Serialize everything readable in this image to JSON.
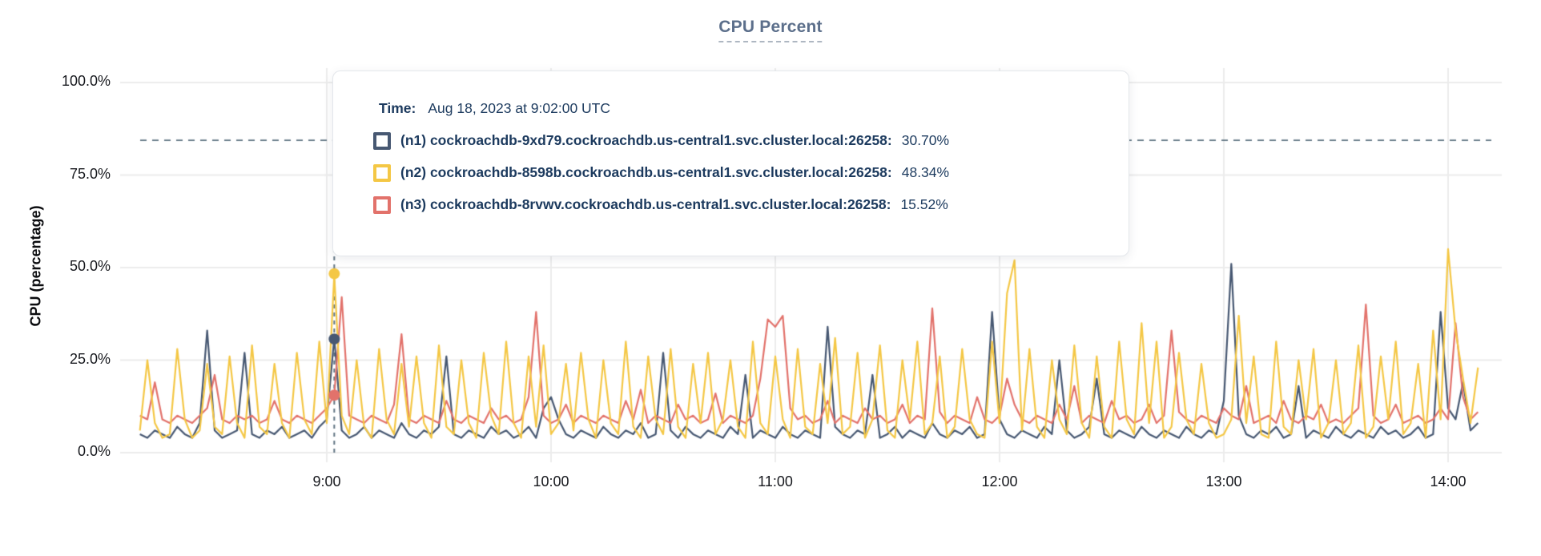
{
  "title": "CPU Percent",
  "y_axis_label": "CPU (percentage)",
  "tooltip": {
    "time_label": "Time:",
    "time_value": "Aug 18, 2023 at 9:02:00 UTC",
    "rows": [
      {
        "label": "(n1) cockroachdb-9xd79.cockroachdb.us-central1.svc.cluster.local:26258:",
        "value": "30.70%"
      },
      {
        "label": "(n2) cockroachdb-8598b.cockroachdb.us-central1.svc.cluster.local:26258:",
        "value": "48.34%"
      },
      {
        "label": "(n3) cockroachdb-8rvwv.cockroachdb.us-central1.svc.cluster.local:26258:",
        "value": "15.52%"
      }
    ]
  },
  "colors": {
    "title": "#5C6F8B",
    "tooltip_text": "#1C3A5E",
    "gridline": "#ECECEC",
    "dashed_guides": "#5F7482",
    "series_n1": "#475872",
    "series_n2": "#F4C745",
    "series_n3": "#E2726B"
  },
  "chart_data": {
    "type": "line",
    "title": "CPU Percent",
    "ylabel": "CPU (percentage)",
    "xlabel": "",
    "ylim": [
      0,
      100
    ],
    "grid": true,
    "y_tick_labels": [
      "0.0%",
      "25.0%",
      "50.0%",
      "75.0%",
      "100.0%"
    ],
    "x_tick_labels": [
      "9:00",
      "10:00",
      "11:00",
      "12:00",
      "13:00",
      "14:00"
    ],
    "x_ticks_minutes": [
      540,
      600,
      660,
      720,
      780,
      840
    ],
    "x_start": "8:10",
    "x_start_minute": 490,
    "x_step_minutes": 2,
    "threshold_percent": 84.4,
    "hover": {
      "time": "9:02",
      "date": "Aug 18, 2023",
      "values": [
        30.7,
        48.34,
        15.52
      ]
    },
    "series": [
      {
        "name": "(n1) cockroachdb-9xd79.cockroachdb.us-central1.svc.cluster.local:26258",
        "color": "#475872",
        "values": [
          5,
          4,
          6,
          5,
          4,
          7,
          5,
          4,
          8,
          33,
          6,
          4,
          5,
          6,
          27,
          5,
          4,
          6,
          5,
          7,
          4,
          5,
          6,
          4,
          7,
          9,
          31,
          6,
          4,
          5,
          7,
          4,
          6,
          5,
          4,
          8,
          5,
          4,
          6,
          5,
          7,
          26,
          5,
          4,
          6,
          5,
          4,
          7,
          5,
          6,
          4,
          5,
          7,
          4,
          12,
          15,
          9,
          5,
          4,
          6,
          5,
          4,
          7,
          5,
          4,
          6,
          5,
          8,
          4,
          5,
          27,
          6,
          4,
          7,
          5,
          4,
          6,
          5,
          4,
          7,
          5,
          21,
          4,
          6,
          5,
          4,
          7,
          5,
          4,
          6,
          5,
          4,
          34,
          7,
          5,
          4,
          6,
          5,
          21,
          4,
          5,
          7,
          4,
          6,
          5,
          4,
          8,
          5,
          4,
          6,
          5,
          7,
          4,
          5,
          38,
          9,
          5,
          4,
          6,
          5,
          4,
          7,
          5,
          25,
          6,
          4,
          5,
          7,
          20,
          5,
          4,
          6,
          5,
          4,
          7,
          5,
          4,
          6,
          5,
          4,
          7,
          5,
          4,
          6,
          5,
          14,
          51,
          10,
          5,
          4,
          6,
          5,
          7,
          4,
          5,
          18,
          4,
          6,
          5,
          4,
          7,
          5,
          4,
          6,
          5,
          4,
          7,
          5,
          6,
          4,
          5,
          7,
          4,
          5,
          38,
          12,
          9,
          19,
          6,
          8
        ]
      },
      {
        "name": "(n2) cockroachdb-8598b.cockroachdb.us-central1.svc.cluster.local:26258",
        "color": "#F4C745",
        "values": [
          6,
          25,
          8,
          4,
          5,
          28,
          9,
          4,
          6,
          24,
          7,
          5,
          26,
          8,
          4,
          29,
          7,
          5,
          24,
          8,
          4,
          27,
          9,
          5,
          30,
          8,
          48,
          10,
          5,
          25,
          7,
          4,
          28,
          9,
          5,
          24,
          7,
          26,
          8,
          4,
          29,
          7,
          5,
          25,
          8,
          4,
          27,
          10,
          5,
          30,
          8,
          4,
          26,
          7,
          29,
          5,
          8,
          24,
          6,
          27,
          9,
          4,
          25,
          8,
          5,
          30,
          7,
          4,
          26,
          9,
          5,
          28,
          7,
          4,
          24,
          8,
          27,
          5,
          9,
          25,
          7,
          4,
          30,
          8,
          5,
          26,
          9,
          4,
          28,
          7,
          5,
          24,
          8,
          31,
          5,
          7,
          27,
          4,
          9,
          29,
          6,
          4,
          25,
          9,
          30,
          5,
          8,
          26,
          4,
          7,
          28,
          9,
          5,
          4,
          30,
          8,
          43,
          52,
          6,
          28,
          7,
          4,
          25,
          9,
          5,
          29,
          8,
          4,
          26,
          7,
          4,
          30,
          9,
          5,
          35,
          8,
          30,
          4,
          7,
          27,
          9,
          5,
          24,
          8,
          4,
          5,
          9,
          37,
          8,
          26,
          5,
          4,
          30,
          7,
          5,
          25,
          9,
          28,
          4,
          8,
          25,
          5,
          8,
          29,
          4,
          7,
          26,
          9,
          30,
          5,
          8,
          24,
          4,
          33,
          9,
          55,
          33,
          20,
          8,
          23
        ]
      },
      {
        "name": "(n3) cockroachdb-8rvwv.cockroachdb.us-central1.svc.cluster.local:26258",
        "color": "#E2726B",
        "values": [
          10,
          9,
          19,
          9,
          8,
          10,
          9,
          8,
          10,
          12,
          21,
          9,
          8,
          10,
          9,
          10,
          8,
          9,
          14,
          9,
          8,
          10,
          9,
          8,
          10,
          12,
          15.5,
          42,
          10,
          9,
          8,
          10,
          9,
          8,
          13,
          32,
          9,
          8,
          10,
          9,
          8,
          14,
          9,
          8,
          10,
          9,
          8,
          12,
          9,
          10,
          8,
          9,
          15,
          38,
          10,
          8,
          9,
          13,
          8,
          10,
          9,
          8,
          10,
          9,
          8,
          14,
          9,
          17,
          8,
          10,
          9,
          8,
          13,
          9,
          10,
          8,
          9,
          16,
          8,
          10,
          9,
          8,
          10,
          20,
          36,
          34,
          37,
          12,
          9,
          10,
          8,
          9,
          14,
          8,
          10,
          9,
          8,
          12,
          9,
          10,
          8,
          9,
          13,
          8,
          10,
          9,
          39,
          11,
          8,
          10,
          9,
          8,
          15,
          9,
          8,
          10,
          20,
          13,
          9,
          8,
          10,
          9,
          8,
          13,
          9,
          18,
          8,
          10,
          9,
          8,
          14,
          9,
          10,
          8,
          9,
          13,
          8,
          10,
          33,
          11,
          9,
          8,
          10,
          9,
          8,
          12,
          10,
          9,
          18,
          8,
          9,
          10,
          8,
          14,
          9,
          8,
          10,
          9,
          13,
          8,
          9,
          8,
          10,
          12,
          40,
          10,
          8,
          9,
          13,
          8,
          9,
          10,
          8,
          9,
          12,
          9,
          35,
          15,
          9,
          11
        ]
      }
    ]
  }
}
